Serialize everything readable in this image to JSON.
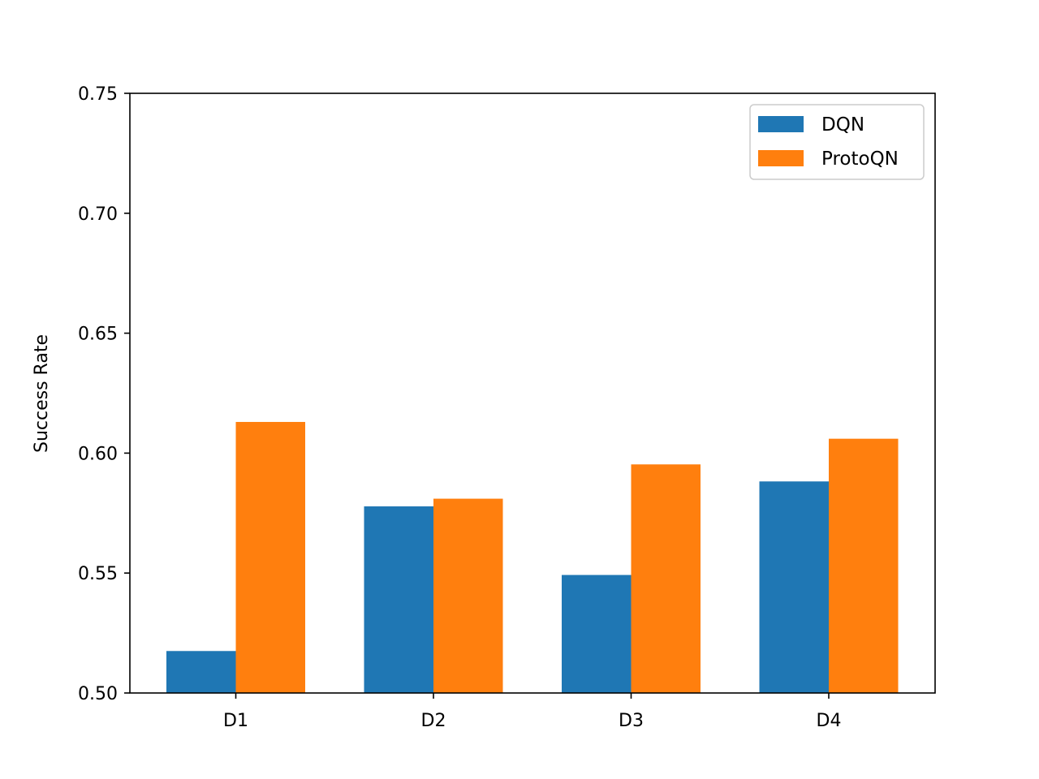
{
  "chart_data": {
    "type": "bar",
    "title": "",
    "xlabel": "",
    "ylabel": "Success Rate",
    "categories": [
      "D1",
      "D2",
      "D3",
      "D4"
    ],
    "series": [
      {
        "name": "DQN",
        "color": "#1f77b4",
        "values": [
          0.5175,
          0.5778,
          0.5492,
          0.5882
        ]
      },
      {
        "name": "ProtoQN",
        "color": "#ff7f0e",
        "values": [
          0.613,
          0.581,
          0.5953,
          0.606
        ]
      }
    ],
    "ylim": [
      0.5,
      0.75
    ],
    "yticks": [
      0.5,
      0.55,
      0.6,
      0.65,
      0.7,
      0.75
    ],
    "ytick_labels": [
      "0.50",
      "0.55",
      "0.60",
      "0.65",
      "0.70",
      "0.75"
    ],
    "grid": false,
    "legend_position": "top-right"
  }
}
